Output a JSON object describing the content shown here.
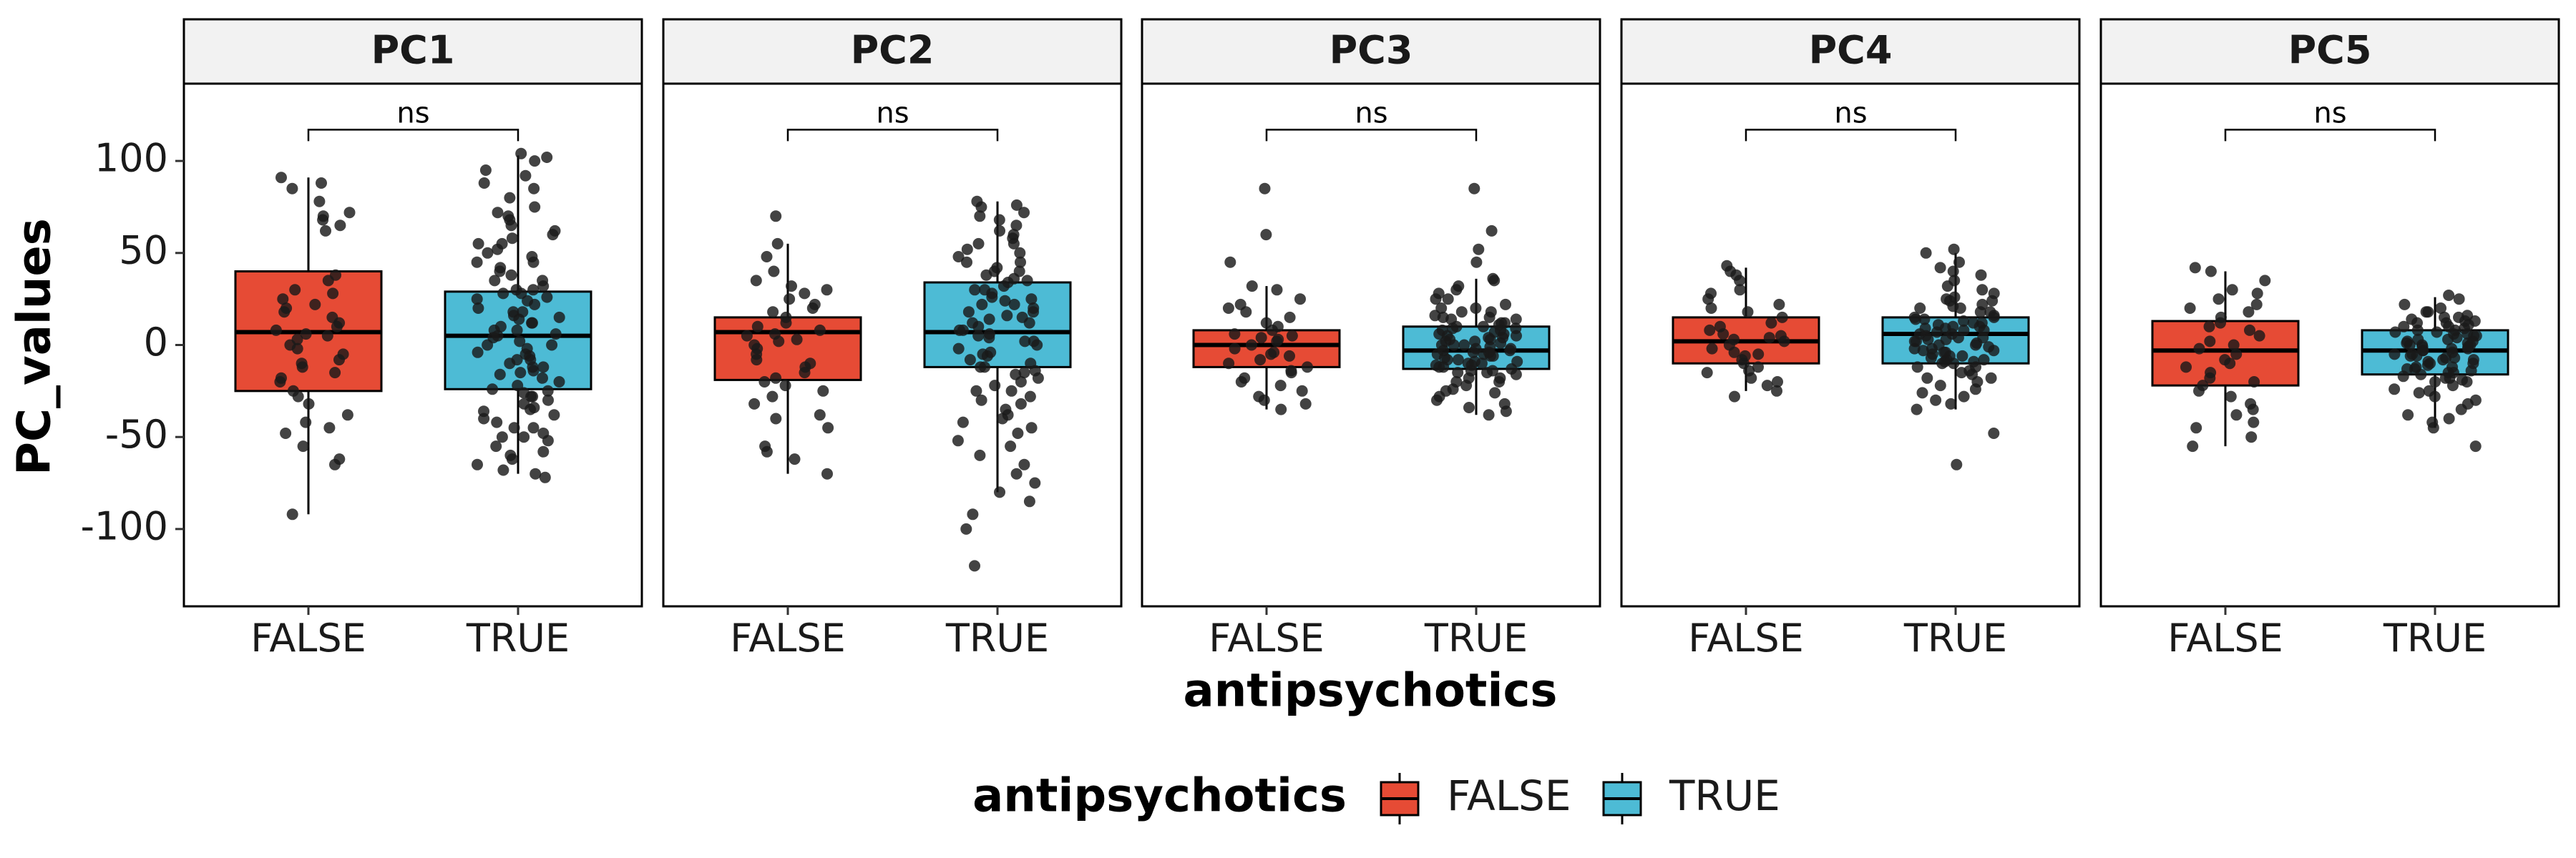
{
  "chart_data": {
    "type": "boxplot",
    "facet_by": "principal component",
    "ylabel": "PC_values",
    "xlabel": "antipsychotics",
    "ylim": [
      -142,
      142
    ],
    "yticks": [
      -100,
      -50,
      0,
      50,
      100
    ],
    "ytick_labels": [
      "-100",
      "-50",
      "0",
      "50",
      "100"
    ],
    "categories": [
      "FALSE",
      "TRUE"
    ],
    "legend": {
      "title": "antipsychotics",
      "position": "bottom",
      "entries": [
        {
          "label": "FALSE",
          "color": "#E64B35"
        },
        {
          "label": "TRUE",
          "color": "#4DBBD5"
        }
      ]
    },
    "annotation_label": "ns",
    "panels": [
      {
        "name": "PC1",
        "annotation": "ns",
        "annotation_y": 117,
        "groups": [
          {
            "category": "FALSE",
            "color": "#E64B35",
            "whisker_low": -92,
            "q1": -25,
            "median": 7,
            "q3": 40,
            "whisker_high": 91,
            "points": [
              88,
              85,
              78,
              72,
              70,
              68,
              91,
              65,
              62,
              38,
              35,
              30,
              28,
              25,
              22,
              20,
              18,
              15,
              12,
              10,
              8,
              6,
              5,
              3,
              0,
              -2,
              -5,
              -8,
              -10,
              -12,
              -15,
              -18,
              -20,
              -25,
              -28,
              -32,
              -38,
              -42,
              -45,
              -48,
              -55,
              -62,
              -65,
              -92
            ]
          },
          {
            "category": "TRUE",
            "color": "#4DBBD5",
            "whisker_low": -70,
            "q1": -24,
            "median": 5,
            "q3": 29,
            "whisker_high": 103,
            "points": [
              104,
              102,
              100,
              95,
              92,
              88,
              85,
              80,
              75,
              72,
              70,
              68,
              65,
              62,
              58,
              55,
              52,
              50,
              48,
              45,
              42,
              40,
              38,
              35,
              32,
              30,
              28,
              26,
              24,
              22,
              20,
              18,
              16,
              14,
              12,
              10,
              8,
              6,
              4,
              2,
              0,
              -2,
              -4,
              -6,
              -8,
              -10,
              -12,
              -14,
              -16,
              -18,
              -20,
              -22,
              -24,
              -26,
              -28,
              -30,
              -32,
              -34,
              -36,
              -38,
              -40,
              -42,
              -45,
              -48,
              -50,
              -52,
              -55,
              -58,
              -60,
              -62,
              -65,
              -68,
              -70,
              -72,
              35,
              15,
              -5,
              -25,
              55,
              25,
              5,
              -15,
              -35,
              45,
              12,
              -8,
              -28,
              60,
              30,
              0,
              -50,
              8,
              -12,
              18,
              28,
              -45
            ]
          }
        ]
      },
      {
        "name": "PC2",
        "annotation": "ns",
        "annotation_y": 117,
        "groups": [
          {
            "category": "FALSE",
            "color": "#E64B35",
            "whisker_low": -70,
            "q1": -19,
            "median": 7,
            "q3": 15,
            "whisker_high": 55,
            "points": [
              70,
              55,
              48,
              40,
              35,
              32,
              30,
              28,
              25,
              22,
              20,
              18,
              15,
              12,
              10,
              8,
              6,
              5,
              3,
              2,
              0,
              -2,
              -5,
              -8,
              -10,
              -12,
              -15,
              -18,
              -20,
              -22,
              -25,
              -28,
              -32,
              -38,
              -40,
              -45,
              -55,
              -58,
              -62,
              -70
            ]
          },
          {
            "category": "TRUE",
            "color": "#4DBBD5",
            "whisker_low": -80,
            "q1": -12,
            "median": 7,
            "q3": 34,
            "whisker_high": 78,
            "points": [
              78,
              76,
              75,
              72,
              70,
              68,
              65,
              62,
              60,
              58,
              55,
              52,
              50,
              48,
              45,
              42,
              40,
              38,
              36,
              34,
              32,
              30,
              28,
              26,
              24,
              22,
              20,
              18,
              16,
              14,
              12,
              10,
              8,
              6,
              4,
              2,
              0,
              -2,
              -4,
              -6,
              -8,
              -10,
              -12,
              -14,
              -16,
              -18,
              -20,
              -22,
              -25,
              -28,
              -30,
              -32,
              -35,
              -38,
              -40,
              -42,
              -45,
              -48,
              -52,
              -55,
              -60,
              -65,
              -70,
              -75,
              -80,
              -85,
              -92,
              -100,
              -120,
              25,
              15,
              5,
              -5,
              35,
              45,
              55,
              22,
              12,
              2,
              -15,
              40,
              30,
              18,
              8,
              -25,
              -12
            ]
          }
        ]
      },
      {
        "name": "PC3",
        "annotation": "ns",
        "annotation_y": 117,
        "groups": [
          {
            "category": "FALSE",
            "color": "#E64B35",
            "whisker_low": -35,
            "q1": -12,
            "median": 0,
            "q3": 8,
            "whisker_high": 32,
            "points": [
              85,
              60,
              45,
              32,
              30,
              25,
              22,
              20,
              18,
              15,
              12,
              10,
              8,
              6,
              5,
              4,
              3,
              2,
              0,
              -2,
              -4,
              -5,
              -6,
              -8,
              -10,
              -12,
              -14,
              -15,
              -18,
              -20,
              -22,
              -25,
              -28,
              -30,
              -32,
              -35
            ]
          },
          {
            "category": "TRUE",
            "color": "#4DBBD5",
            "whisker_low": -38,
            "q1": -13,
            "median": -3,
            "q3": 10,
            "whisker_high": 36,
            "points": [
              85,
              62,
              52,
              45,
              36,
              35,
              32,
              30,
              28,
              25,
              22,
              20,
              18,
              16,
              15,
              14,
              12,
              10,
              9,
              8,
              7,
              6,
              5,
              4,
              3,
              2,
              1,
              0,
              -1,
              -2,
              -3,
              -4,
              -5,
              -6,
              -7,
              -8,
              -9,
              -10,
              -11,
              -12,
              -13,
              -14,
              -15,
              -16,
              -18,
              -20,
              -22,
              -24,
              -26,
              -28,
              -30,
              -32,
              -34,
              -36,
              -38,
              10,
              5,
              0,
              -5,
              -10,
              15,
              20,
              -15,
              -20,
              8,
              3,
              -3,
              -8,
              12,
              -12,
              2,
              -2,
              6,
              -6,
              18,
              -18,
              25,
              -25,
              14,
              -14,
              4,
              -4,
              9,
              -9,
              0,
              11,
              -11
            ]
          }
        ]
      },
      {
        "name": "PC4",
        "annotation": "ns",
        "annotation_y": 117,
        "groups": [
          {
            "category": "FALSE",
            "color": "#E64B35",
            "whisker_low": -25,
            "q1": -10,
            "median": 2,
            "q3": 15,
            "whisker_high": 42,
            "points": [
              43,
              40,
              38,
              35,
              30,
              28,
              25,
              22,
              20,
              18,
              15,
              12,
              10,
              8,
              6,
              5,
              4,
              3,
              2,
              0,
              -2,
              -4,
              -5,
              -6,
              -8,
              -10,
              -12,
              -14,
              -15,
              -18,
              -20,
              -22,
              -25,
              -28
            ]
          },
          {
            "category": "TRUE",
            "color": "#4DBBD5",
            "whisker_low": -35,
            "q1": -10,
            "median": 6,
            "q3": 15,
            "whisker_high": 50,
            "points": [
              52,
              50,
              45,
              42,
              40,
              38,
              35,
              32,
              30,
              28,
              26,
              25,
              24,
              22,
              20,
              18,
              16,
              15,
              14,
              13,
              12,
              11,
              10,
              9,
              8,
              7,
              6,
              5,
              4,
              3,
              2,
              1,
              0,
              -1,
              -2,
              -3,
              -4,
              -5,
              -6,
              -7,
              -8,
              -9,
              -10,
              -12,
              -14,
              -16,
              -18,
              -20,
              -22,
              -24,
              -26,
              -28,
              -30,
              -32,
              -35,
              -48,
              -65,
              18,
              12,
              6,
              0,
              -6,
              -12,
              24,
              -18,
              15,
              9,
              3,
              -3,
              -9,
              21,
              -15,
              10,
              4,
              -2,
              -8,
              14,
              8,
              2,
              -4,
              -10,
              20
            ]
          }
        ]
      },
      {
        "name": "PC5",
        "annotation": "ns",
        "annotation_y": 117,
        "groups": [
          {
            "category": "FALSE",
            "color": "#E64B35",
            "whisker_low": -55,
            "q1": -22,
            "median": -3,
            "q3": 13,
            "whisker_high": 40,
            "points": [
              42,
              40,
              35,
              30,
              28,
              25,
              22,
              20,
              18,
              15,
              12,
              10,
              8,
              5,
              2,
              0,
              -2,
              -5,
              -8,
              -10,
              -12,
              -15,
              -18,
              -20,
              -22,
              -25,
              -28,
              -32,
              -35,
              -38,
              -42,
              -45,
              -50,
              -55
            ]
          },
          {
            "category": "TRUE",
            "color": "#4DBBD5",
            "whisker_low": -45,
            "q1": -16,
            "median": -3,
            "q3": 8,
            "whisker_high": 26,
            "points": [
              27,
              25,
              22,
              20,
              18,
              16,
              15,
              14,
              13,
              12,
              11,
              10,
              9,
              8,
              7,
              6,
              5,
              4,
              3,
              2,
              1,
              0,
              -1,
              -2,
              -3,
              -4,
              -5,
              -6,
              -7,
              -8,
              -9,
              -10,
              -11,
              -12,
              -13,
              -14,
              -15,
              -16,
              -17,
              -18,
              -19,
              -20,
              -22,
              -24,
              -26,
              -28,
              -30,
              -32,
              -35,
              -38,
              -40,
              -42,
              -45,
              -55,
              5,
              0,
              -5,
              -10,
              10,
              -15,
              15,
              -20,
              3,
              -3,
              8,
              -8,
              12,
              -12,
              6,
              -6,
              0,
              -2,
              2,
              -18,
              18,
              -25,
              1,
              -1,
              -7,
              7,
              -13,
              13
            ]
          }
        ]
      }
    ]
  }
}
